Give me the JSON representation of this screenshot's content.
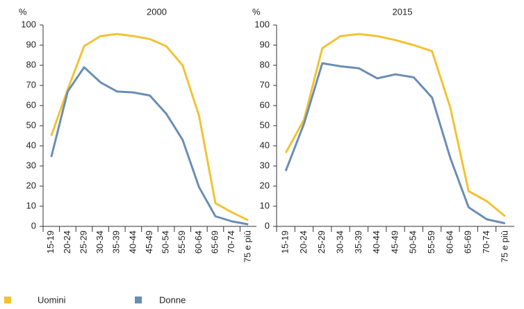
{
  "chart_data": [
    {
      "type": "line",
      "title": "2000",
      "y_label": "%",
      "categories": [
        "15-19",
        "20-24",
        "25-29",
        "30-34",
        "35-39",
        "40-44",
        "45-49",
        "50-54",
        "55-59",
        "60-64",
        "65-69",
        "70-74",
        "75 e più"
      ],
      "series": [
        {
          "name": "Uomini",
          "color": "#f3c233",
          "values": [
            45,
            68,
            89.5,
            94.5,
            95.5,
            94.5,
            93,
            89.5,
            80,
            55,
            11.5,
            7,
            3
          ]
        },
        {
          "name": "Donne",
          "color": "#6a8db5",
          "values": [
            34.5,
            67,
            79,
            71.5,
            67,
            66.5,
            65,
            56,
            43,
            19.5,
            5,
            2.5,
            1
          ]
        }
      ],
      "ylim": [
        0,
        100
      ],
      "yticks": [
        0,
        10,
        20,
        30,
        40,
        50,
        60,
        70,
        80,
        90,
        100
      ],
      "grid": false
    },
    {
      "type": "line",
      "title": "2015",
      "y_label": "%",
      "categories": [
        "15-19",
        "20-24",
        "25-29",
        "30-34",
        "35-39",
        "40-44",
        "45-49",
        "50-54",
        "55-59",
        "60-64",
        "65-69",
        "70-74",
        "75 e più"
      ],
      "series": [
        {
          "name": "Uomini",
          "color": "#f3c233",
          "values": [
            36.5,
            53,
            88.5,
            94.5,
            95.5,
            94.5,
            92.5,
            90,
            87,
            59,
            17.5,
            12.5,
            5
          ]
        },
        {
          "name": "Donne",
          "color": "#6a8db5",
          "values": [
            27.5,
            51,
            81,
            79.5,
            78.5,
            73.5,
            75.5,
            74,
            64,
            34,
            9.5,
            3.5,
            1.5
          ]
        }
      ],
      "ylim": [
        0,
        100
      ],
      "yticks": [
        0,
        10,
        20,
        30,
        40,
        50,
        60,
        70,
        80,
        90,
        100
      ],
      "grid": false
    }
  ]
}
